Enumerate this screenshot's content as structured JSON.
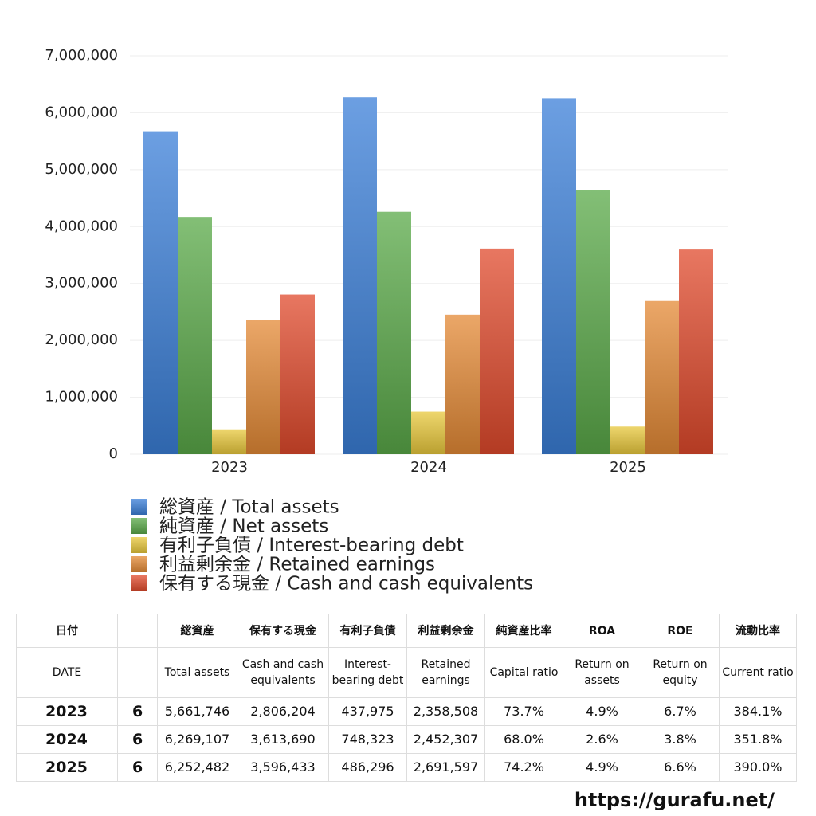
{
  "chart_data": {
    "type": "bar",
    "categories": [
      "2023",
      "2024",
      "2025"
    ],
    "series": [
      {
        "name": "総資産 / Total assets",
        "color": "#3b7fd8",
        "values": [
          5661746,
          6269107,
          6252482
        ]
      },
      {
        "name": "純資産 / Net assets",
        "color": "#5aa948",
        "values": [
          4170000,
          4260000,
          4640000
        ]
      },
      {
        "name": "有利子負債 / Interest-bearing debt",
        "color": "#e8c83c",
        "values": [
          437975,
          748323,
          486296
        ]
      },
      {
        "name": "利益剰余金 / Retained earnings",
        "color": "#e48a36",
        "values": [
          2358508,
          2452307,
          2691597
        ]
      },
      {
        "name": "保有する現金 /  Cash and cash equivalents",
        "color": "#e04a2c",
        "values": [
          2806204,
          3613690,
          3596433
        ]
      }
    ],
    "ylim": [
      0,
      7000000
    ],
    "yticks": [
      0,
      {
        "value": 1000000,
        "label": "1,000,000"
      },
      {
        "value": 2000000,
        "label": "2,000,000"
      },
      {
        "value": 3000000,
        "label": "3,000,000"
      },
      {
        "value": 4000000,
        "label": "4,000,000"
      },
      {
        "value": 5000000,
        "label": "5,000,000"
      },
      {
        "value": 6000000,
        "label": "6,000,000"
      },
      {
        "value": 7000000,
        "label": "7,000,000"
      }
    ],
    "grid": true
  },
  "table": {
    "header_ja": [
      "日付",
      null,
      "総資産",
      "保有する現金",
      "有利子負債",
      "利益剰余金",
      "純資産比率",
      "ROA",
      "ROE",
      "流動比率"
    ],
    "header_en": [
      "DATE",
      null,
      "Total assets",
      "Cash and cash equivalents",
      "Interest-bearing debt",
      "Retained earnings",
      "Capital ratio",
      "Return on assets",
      "Return on equity",
      "Current ratio"
    ],
    "rows": [
      [
        "2023",
        "6",
        "5,661,746",
        "2,806,204",
        "437,975",
        "2,358,508",
        "73.7%",
        "4.9%",
        "6.7%",
        "384.1%"
      ],
      [
        "2024",
        "6",
        "6,269,107",
        "3,613,690",
        "748,323",
        "2,452,307",
        "68.0%",
        "2.6%",
        "3.8%",
        "351.8%"
      ],
      [
        "2025",
        "6",
        "6,252,482",
        "3,596,433",
        "486,296",
        "2,691,597",
        "74.2%",
        "4.9%",
        "6.6%",
        "390.0%"
      ]
    ]
  },
  "footer": "https://gurafu.net/"
}
